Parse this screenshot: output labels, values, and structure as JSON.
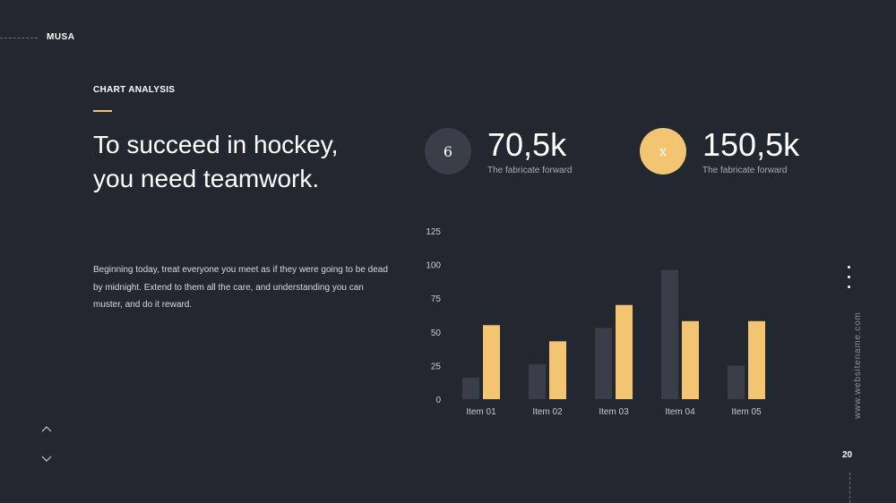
{
  "brand": {
    "name": "MUSA"
  },
  "section_label": "CHART ANALYSIS",
  "headline": "To succeed in hockey, you need teamwork.",
  "body": "Beginning today, treat everyone you meet as if they were going to be dead by midnight. Extend to them all the care, and understanding you can muster, and do it reward.",
  "stats": [
    {
      "icon_text": "6",
      "value": "70,5k",
      "caption": "The fabricate forward",
      "color": "#3a3e48"
    },
    {
      "icon_text": "x",
      "value": "150,5k",
      "caption": "The fabricate forward",
      "color": "#f3c572"
    }
  ],
  "side": {
    "website": "www.websitename.com",
    "page_number": "20"
  },
  "colors": {
    "background": "#23272f",
    "accent": "#f3c572",
    "dark_bar": "#3a3e48"
  },
  "chart_data": {
    "type": "bar",
    "categories": [
      "Item 01",
      "Item 02",
      "Item 03",
      "Item 04",
      "Item 05"
    ],
    "series": [
      {
        "values": [
          16,
          26,
          53,
          96,
          25
        ],
        "color": "#3a3e48"
      },
      {
        "values": [
          55,
          43,
          70,
          58,
          58
        ],
        "color": "#f3c572"
      }
    ],
    "ylim": [
      0,
      125
    ],
    "yticks": [
      0,
      25,
      50,
      75,
      100,
      125
    ],
    "title": "",
    "xlabel": "",
    "ylabel": "",
    "grid": false,
    "legend": "none"
  }
}
